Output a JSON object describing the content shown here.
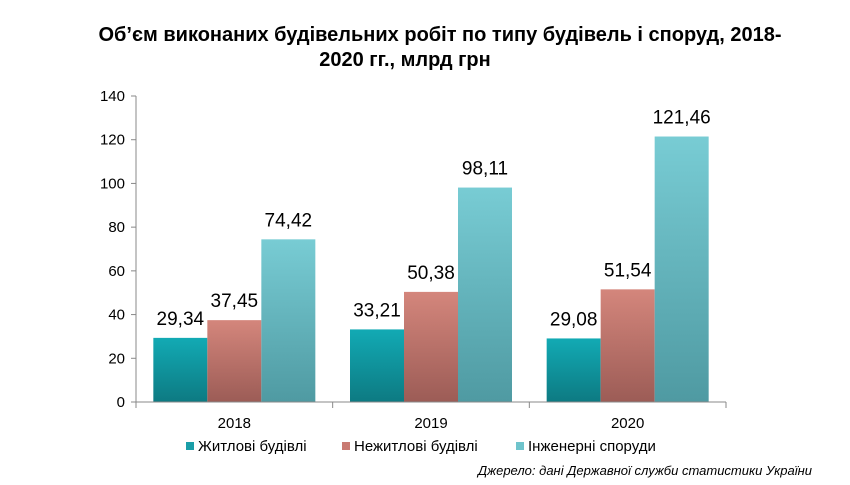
{
  "chart_data": {
    "type": "bar",
    "title_line1": "Об’єм виконаних будівельних робіт по типу будівель і споруд,  2018-",
    "title_line2": "2020 гг., млрд грн",
    "categories": [
      "2018",
      "2019",
      "2020"
    ],
    "series": [
      {
        "name": "Житлові  будівлі",
        "values": [
          29.34,
          33.21,
          29.08
        ],
        "labels": [
          "29,34",
          "33,21",
          "29,08"
        ],
        "color": "#1a9ea8"
      },
      {
        "name": "Нежитлові  будівлі",
        "values": [
          37.45,
          50.38,
          51.54
        ],
        "labels": [
          "37,45",
          "50,38",
          "51,54"
        ],
        "color": "#c97a72"
      },
      {
        "name": "Інженерні  споруди",
        "values": [
          74.42,
          98.11,
          121.46
        ],
        "labels": [
          "74,42",
          "98,11",
          "121,46"
        ],
        "color": "#6fc4cc"
      }
    ],
    "yticks": [
      "0",
      "20",
      "40",
      "60",
      "80",
      "100",
      "120",
      "140"
    ],
    "ylim": [
      0,
      140
    ],
    "legend_position": "bottom",
    "grid": false
  },
  "source_note": "Джерело: дані Державної служби статистики України"
}
